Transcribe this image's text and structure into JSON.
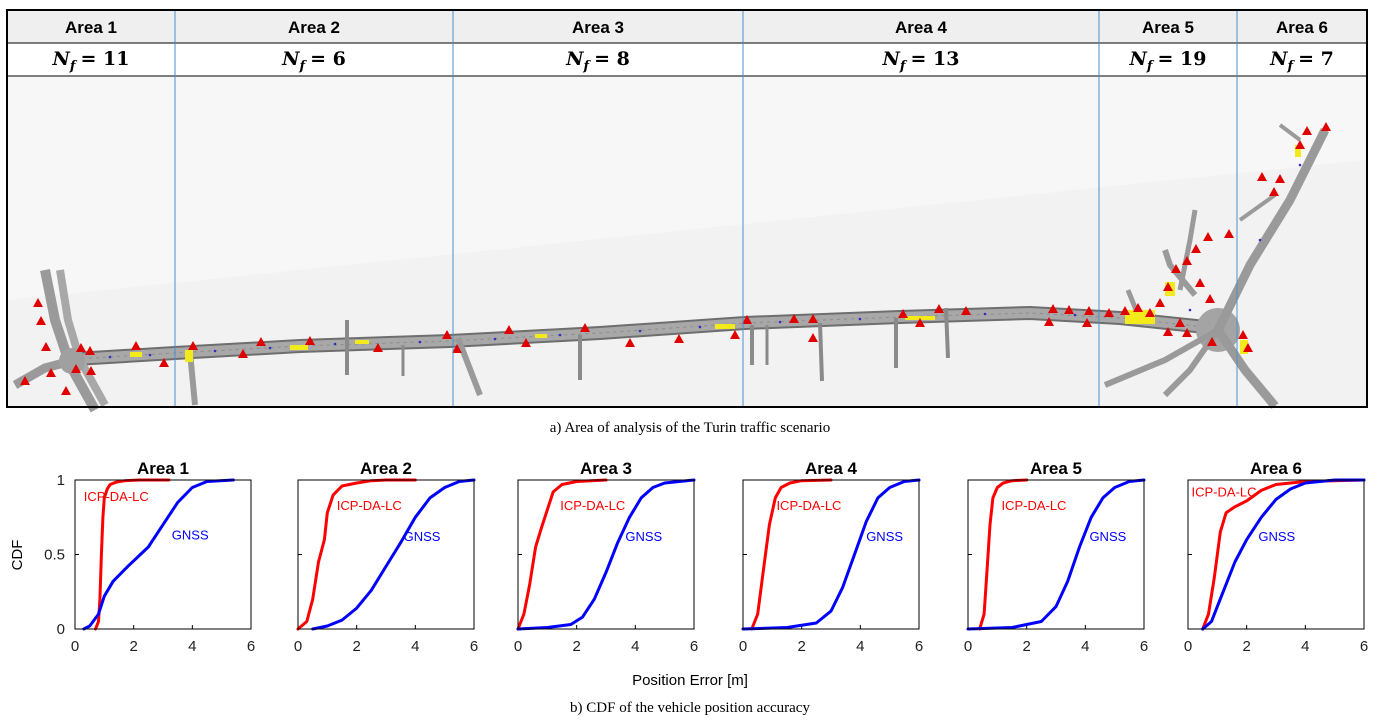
{
  "top_panel": {
    "caption": "a) Area of analysis of the Turin traffic scenario",
    "areas": [
      {
        "name": "Area 1",
        "nf_symbol": "N",
        "nf_sub": "f",
        "nf_value": "= 11"
      },
      {
        "name": "Area 2",
        "nf_symbol": "N",
        "nf_sub": "f",
        "nf_value": "= 6"
      },
      {
        "name": "Area 3",
        "nf_symbol": "N",
        "nf_sub": "f",
        "nf_value": "= 8"
      },
      {
        "name": "Area 4",
        "nf_symbol": "N",
        "nf_sub": "f",
        "nf_value": "= 13"
      },
      {
        "name": "Area 5",
        "nf_symbol": "N",
        "nf_sub": "f",
        "nf_value": "= 19"
      },
      {
        "name": "Area 6",
        "nf_symbol": "N",
        "nf_sub": "f",
        "nf_value": "= 7"
      }
    ],
    "colors": {
      "road": "#9a9a9a",
      "road_edge": "#6e6e6e",
      "highlight": "#f2ea1a",
      "marker": "#e00000",
      "divider": "#4a8fd0",
      "vehicle_dots": "#3030c0"
    }
  },
  "bottom_panel": {
    "caption": "b) CDF of the vehicle position accuracy",
    "ylabel": "CDF",
    "xlabel": "Position Error [m]"
  },
  "chart_data": [
    {
      "type": "line",
      "title": "Area 1",
      "xlim": [
        0,
        6
      ],
      "ylim": [
        0,
        1
      ],
      "xticks": [
        0,
        2,
        4,
        6
      ],
      "yticks": [
        0,
        0.5,
        1
      ],
      "series": [
        {
          "name": "ICP-DA-LC",
          "color": "#ff0000",
          "x": [
            0.7,
            0.8,
            0.85,
            0.9,
            0.95,
            1.0,
            1.1,
            1.2,
            1.4,
            1.7,
            2.2,
            3.2
          ],
          "y": [
            0.0,
            0.05,
            0.2,
            0.5,
            0.75,
            0.88,
            0.94,
            0.97,
            0.985,
            0.995,
            1.0,
            1.0
          ]
        },
        {
          "name": "GNSS",
          "color": "#0000ff",
          "x": [
            0.3,
            0.5,
            0.8,
            1.0,
            1.3,
            1.8,
            2.5,
            3.0,
            3.5,
            4.0,
            4.5,
            5.4
          ],
          "y": [
            0.0,
            0.02,
            0.1,
            0.22,
            0.32,
            0.42,
            0.55,
            0.7,
            0.85,
            0.95,
            0.99,
            1.0
          ]
        }
      ]
    },
    {
      "type": "line",
      "title": "Area 2",
      "xlim": [
        0,
        6
      ],
      "ylim": [
        0,
        1
      ],
      "xticks": [
        0,
        2,
        4,
        6
      ],
      "yticks": [
        0,
        0.5,
        1
      ],
      "series": [
        {
          "name": "ICP-DA-LC",
          "color": "#ff0000",
          "x": [
            0.0,
            0.3,
            0.5,
            0.7,
            0.9,
            1.0,
            1.2,
            1.5,
            2.0,
            2.5,
            3.0,
            4.0
          ],
          "y": [
            0.0,
            0.05,
            0.2,
            0.45,
            0.6,
            0.78,
            0.9,
            0.96,
            0.98,
            0.995,
            1.0,
            1.0
          ]
        },
        {
          "name": "GNSS",
          "color": "#0000ff",
          "x": [
            0.5,
            1.0,
            1.5,
            2.0,
            2.5,
            3.0,
            3.5,
            4.0,
            4.5,
            5.0,
            5.5,
            6.0
          ],
          "y": [
            0.0,
            0.02,
            0.06,
            0.14,
            0.26,
            0.42,
            0.58,
            0.75,
            0.88,
            0.95,
            0.99,
            1.0
          ]
        }
      ]
    },
    {
      "type": "line",
      "title": "Area 3",
      "xlim": [
        0,
        6
      ],
      "ylim": [
        0,
        1
      ],
      "xticks": [
        0,
        2,
        4,
        6
      ],
      "yticks": [
        0,
        0.5,
        1
      ],
      "series": [
        {
          "name": "ICP-DA-LC",
          "color": "#ff0000",
          "x": [
            0.0,
            0.2,
            0.4,
            0.6,
            0.8,
            1.0,
            1.2,
            1.5,
            2.0,
            3.0
          ],
          "y": [
            0.0,
            0.1,
            0.3,
            0.55,
            0.68,
            0.8,
            0.92,
            0.97,
            0.99,
            1.0
          ]
        },
        {
          "name": "GNSS",
          "color": "#0000ff",
          "x": [
            0.0,
            1.0,
            1.8,
            2.2,
            2.6,
            3.0,
            3.4,
            3.8,
            4.2,
            4.6,
            5.0,
            6.0
          ],
          "y": [
            0.0,
            0.01,
            0.03,
            0.08,
            0.2,
            0.38,
            0.58,
            0.75,
            0.88,
            0.95,
            0.98,
            1.0
          ]
        }
      ]
    },
    {
      "type": "line",
      "title": "Area 4",
      "xlim": [
        0,
        6
      ],
      "ylim": [
        0,
        1
      ],
      "xticks": [
        0,
        2,
        4,
        6
      ],
      "yticks": [
        0,
        0.5,
        1
      ],
      "series": [
        {
          "name": "ICP-DA-LC",
          "color": "#ff0000",
          "x": [
            0.3,
            0.5,
            0.7,
            0.9,
            1.1,
            1.3,
            1.6,
            2.0,
            3.0
          ],
          "y": [
            0.0,
            0.1,
            0.4,
            0.7,
            0.88,
            0.95,
            0.98,
            0.995,
            1.0
          ]
        },
        {
          "name": "GNSS",
          "color": "#0000ff",
          "x": [
            0.0,
            1.5,
            2.5,
            3.0,
            3.4,
            3.8,
            4.2,
            4.6,
            5.0,
            5.5,
            6.0
          ],
          "y": [
            0.0,
            0.01,
            0.04,
            0.12,
            0.28,
            0.5,
            0.72,
            0.88,
            0.95,
            0.99,
            1.0
          ]
        }
      ]
    },
    {
      "type": "line",
      "title": "Area 5",
      "xlim": [
        0,
        6
      ],
      "ylim": [
        0,
        1
      ],
      "xticks": [
        0,
        2,
        4,
        6
      ],
      "yticks": [
        0,
        0.5,
        1
      ],
      "series": [
        {
          "name": "ICP-DA-LC",
          "color": "#ff0000",
          "x": [
            0.4,
            0.55,
            0.65,
            0.75,
            0.85,
            1.0,
            1.2,
            1.5,
            2.0
          ],
          "y": [
            0.0,
            0.1,
            0.4,
            0.7,
            0.88,
            0.95,
            0.98,
            0.995,
            1.0
          ]
        },
        {
          "name": "GNSS",
          "color": "#0000ff",
          "x": [
            0.0,
            1.5,
            2.5,
            3.0,
            3.4,
            3.8,
            4.2,
            4.6,
            5.0,
            5.5,
            6.0
          ],
          "y": [
            0.0,
            0.01,
            0.05,
            0.15,
            0.32,
            0.55,
            0.75,
            0.88,
            0.95,
            0.99,
            1.0
          ]
        }
      ]
    },
    {
      "type": "line",
      "title": "Area 6",
      "xlim": [
        0,
        6
      ],
      "ylim": [
        0,
        1
      ],
      "xticks": [
        0,
        2,
        4,
        6
      ],
      "yticks": [
        0,
        0.5,
        1
      ],
      "series": [
        {
          "name": "ICP-DA-LC",
          "color": "#ff0000",
          "x": [
            0.5,
            0.7,
            0.9,
            1.1,
            1.3,
            1.6,
            2.0,
            2.5,
            3.0,
            4.0,
            6.0
          ],
          "y": [
            0.0,
            0.1,
            0.35,
            0.65,
            0.78,
            0.82,
            0.86,
            0.93,
            0.97,
            0.99,
            1.0
          ]
        },
        {
          "name": "GNSS",
          "color": "#0000ff",
          "x": [
            0.5,
            0.8,
            1.0,
            1.3,
            1.6,
            2.0,
            2.5,
            3.0,
            3.5,
            4.0,
            5.0,
            6.0
          ],
          "y": [
            0.0,
            0.05,
            0.15,
            0.3,
            0.45,
            0.6,
            0.75,
            0.87,
            0.94,
            0.98,
            1.0,
            1.0
          ]
        }
      ]
    }
  ]
}
